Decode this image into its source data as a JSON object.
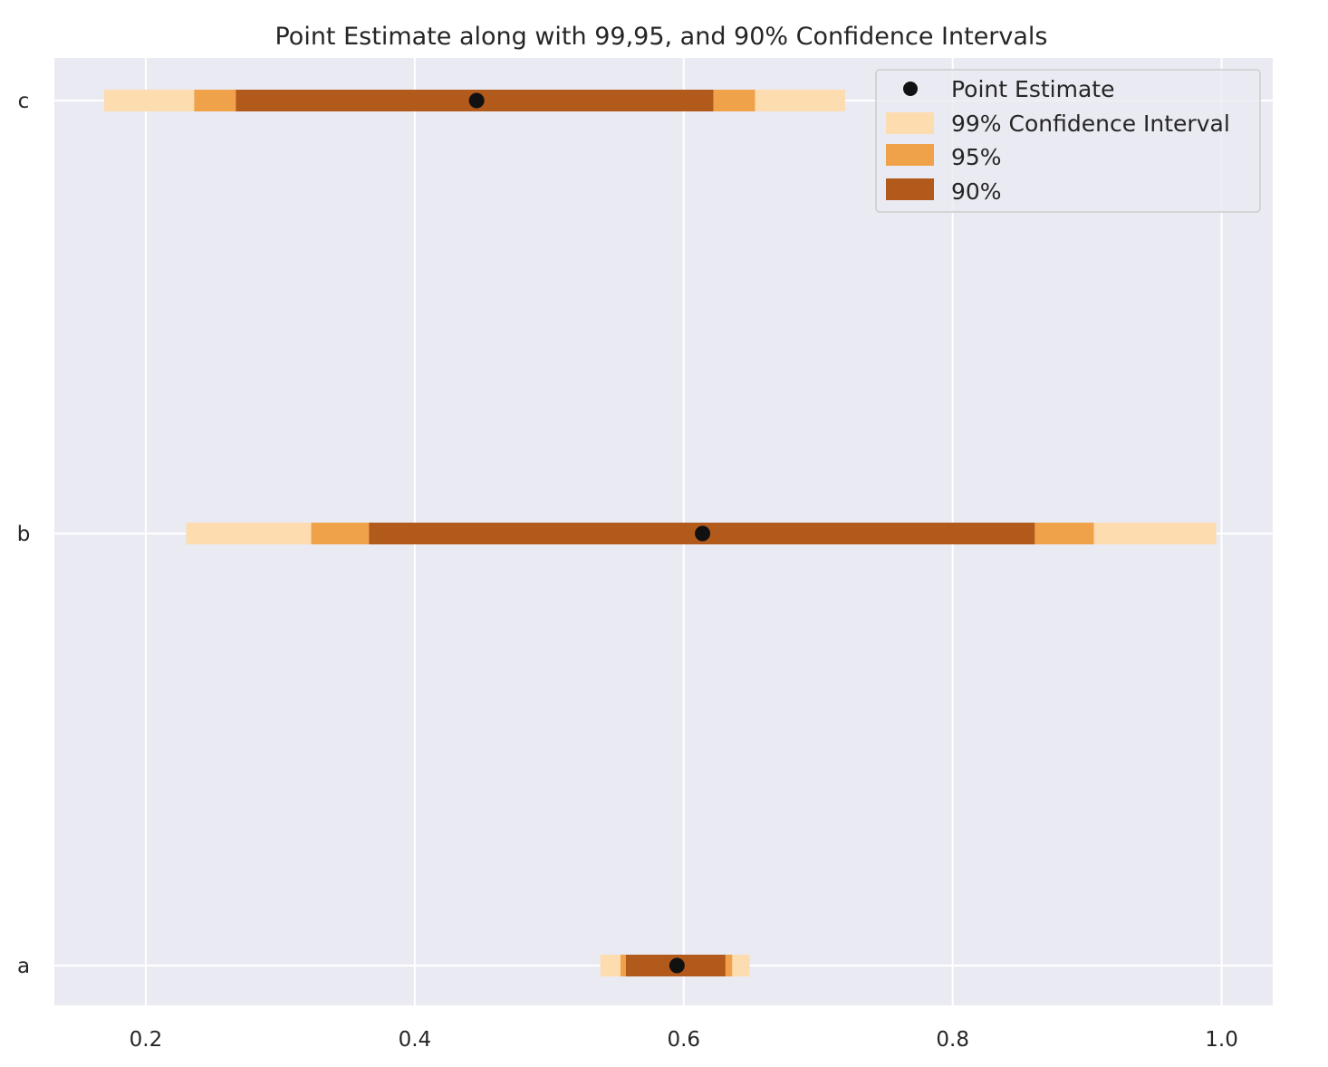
{
  "chart_data": {
    "type": "interval",
    "title": "Point Estimate along with 99,95, and 90% Confidence Intervals",
    "xlabel": "",
    "ylabel": "",
    "xlim": [
      0.132,
      1.038
    ],
    "x_ticks": [
      "0.2",
      "0.4",
      "0.6",
      "0.8",
      "1.0"
    ],
    "categories": [
      "a",
      "b",
      "c"
    ],
    "grid": true,
    "legend_position": "upper right",
    "legend": [
      "Point Estimate",
      "99% Confidence Interval",
      "95%",
      "90%"
    ],
    "colors": {
      "background": "#eaeaf2",
      "grid": "#ffffff",
      "ci99": "#fddcb0",
      "ci95": "#f0a24b",
      "ci90": "#b2591c",
      "point": "#111111"
    },
    "series": [
      {
        "category": "a",
        "point": 0.595,
        "ci99": [
          0.538,
          0.649
        ],
        "ci95": [
          0.553,
          0.636
        ],
        "ci90": [
          0.557,
          0.631
        ]
      },
      {
        "category": "b",
        "point": 0.614,
        "ci99": [
          0.23,
          0.996
        ],
        "ci95": [
          0.323,
          0.905
        ],
        "ci90": [
          0.366,
          0.861
        ]
      },
      {
        "category": "c",
        "point": 0.446,
        "ci99": [
          0.169,
          0.72
        ],
        "ci95": [
          0.236,
          0.653
        ],
        "ci90": [
          0.267,
          0.622
        ]
      }
    ]
  }
}
